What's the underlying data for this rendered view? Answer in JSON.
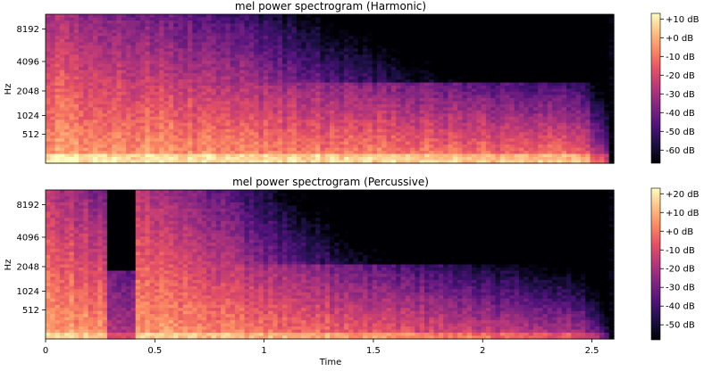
{
  "chart_data": [
    {
      "type": "heatmap",
      "title": "mel power spectrogram (Harmonic)",
      "xlabel": "",
      "ylabel": "Hz",
      "x_range": [
        0,
        2.6
      ],
      "y_scale": "mel",
      "y_ticks": [
        512,
        1024,
        2048,
        4096,
        8192
      ],
      "y_tick_labels": [
        "512",
        "1024",
        "2048",
        "4096",
        "8192"
      ],
      "x_ticks": [],
      "colormap": "magma",
      "colorbar_range_db": [
        -67,
        13
      ],
      "colorbar_ticks": [
        10,
        0,
        -10,
        -20,
        -30,
        -40,
        -50,
        -60
      ],
      "colorbar_labels": [
        "+10 dB",
        "+0 dB",
        "-10 dB",
        "-20 dB",
        "-30 dB",
        "-40 dB",
        "-50 dB",
        "-60 dB"
      ],
      "signal_end_time": 2.57,
      "onsets": [
        0.0
      ]
    },
    {
      "type": "heatmap",
      "title": "mel power spectrogram (Percussive)",
      "xlabel": "Time",
      "ylabel": "Hz",
      "x_range": [
        0,
        2.6
      ],
      "y_scale": "mel",
      "y_ticks": [
        512,
        1024,
        2048,
        4096,
        8192
      ],
      "y_tick_labels": [
        "512",
        "1024",
        "2048",
        "4096",
        "8192"
      ],
      "x_ticks": [
        0,
        0.5,
        1,
        1.5,
        2,
        2.5
      ],
      "x_tick_labels": [
        "0",
        "0.5",
        "1",
        "1.5",
        "2",
        "2.5"
      ],
      "colormap": "magma",
      "colorbar_range_db": [
        -58,
        23
      ],
      "colorbar_ticks": [
        20,
        10,
        0,
        -10,
        -20,
        -30,
        -40,
        -50
      ],
      "colorbar_labels": [
        "+20 dB",
        "+10 dB",
        "+0 dB",
        "-10 dB",
        "-20 dB",
        "-30 dB",
        "-40 dB",
        "-50 dB"
      ],
      "signal_end_time": 2.57,
      "onsets": [
        0.0,
        0.42
      ]
    }
  ]
}
